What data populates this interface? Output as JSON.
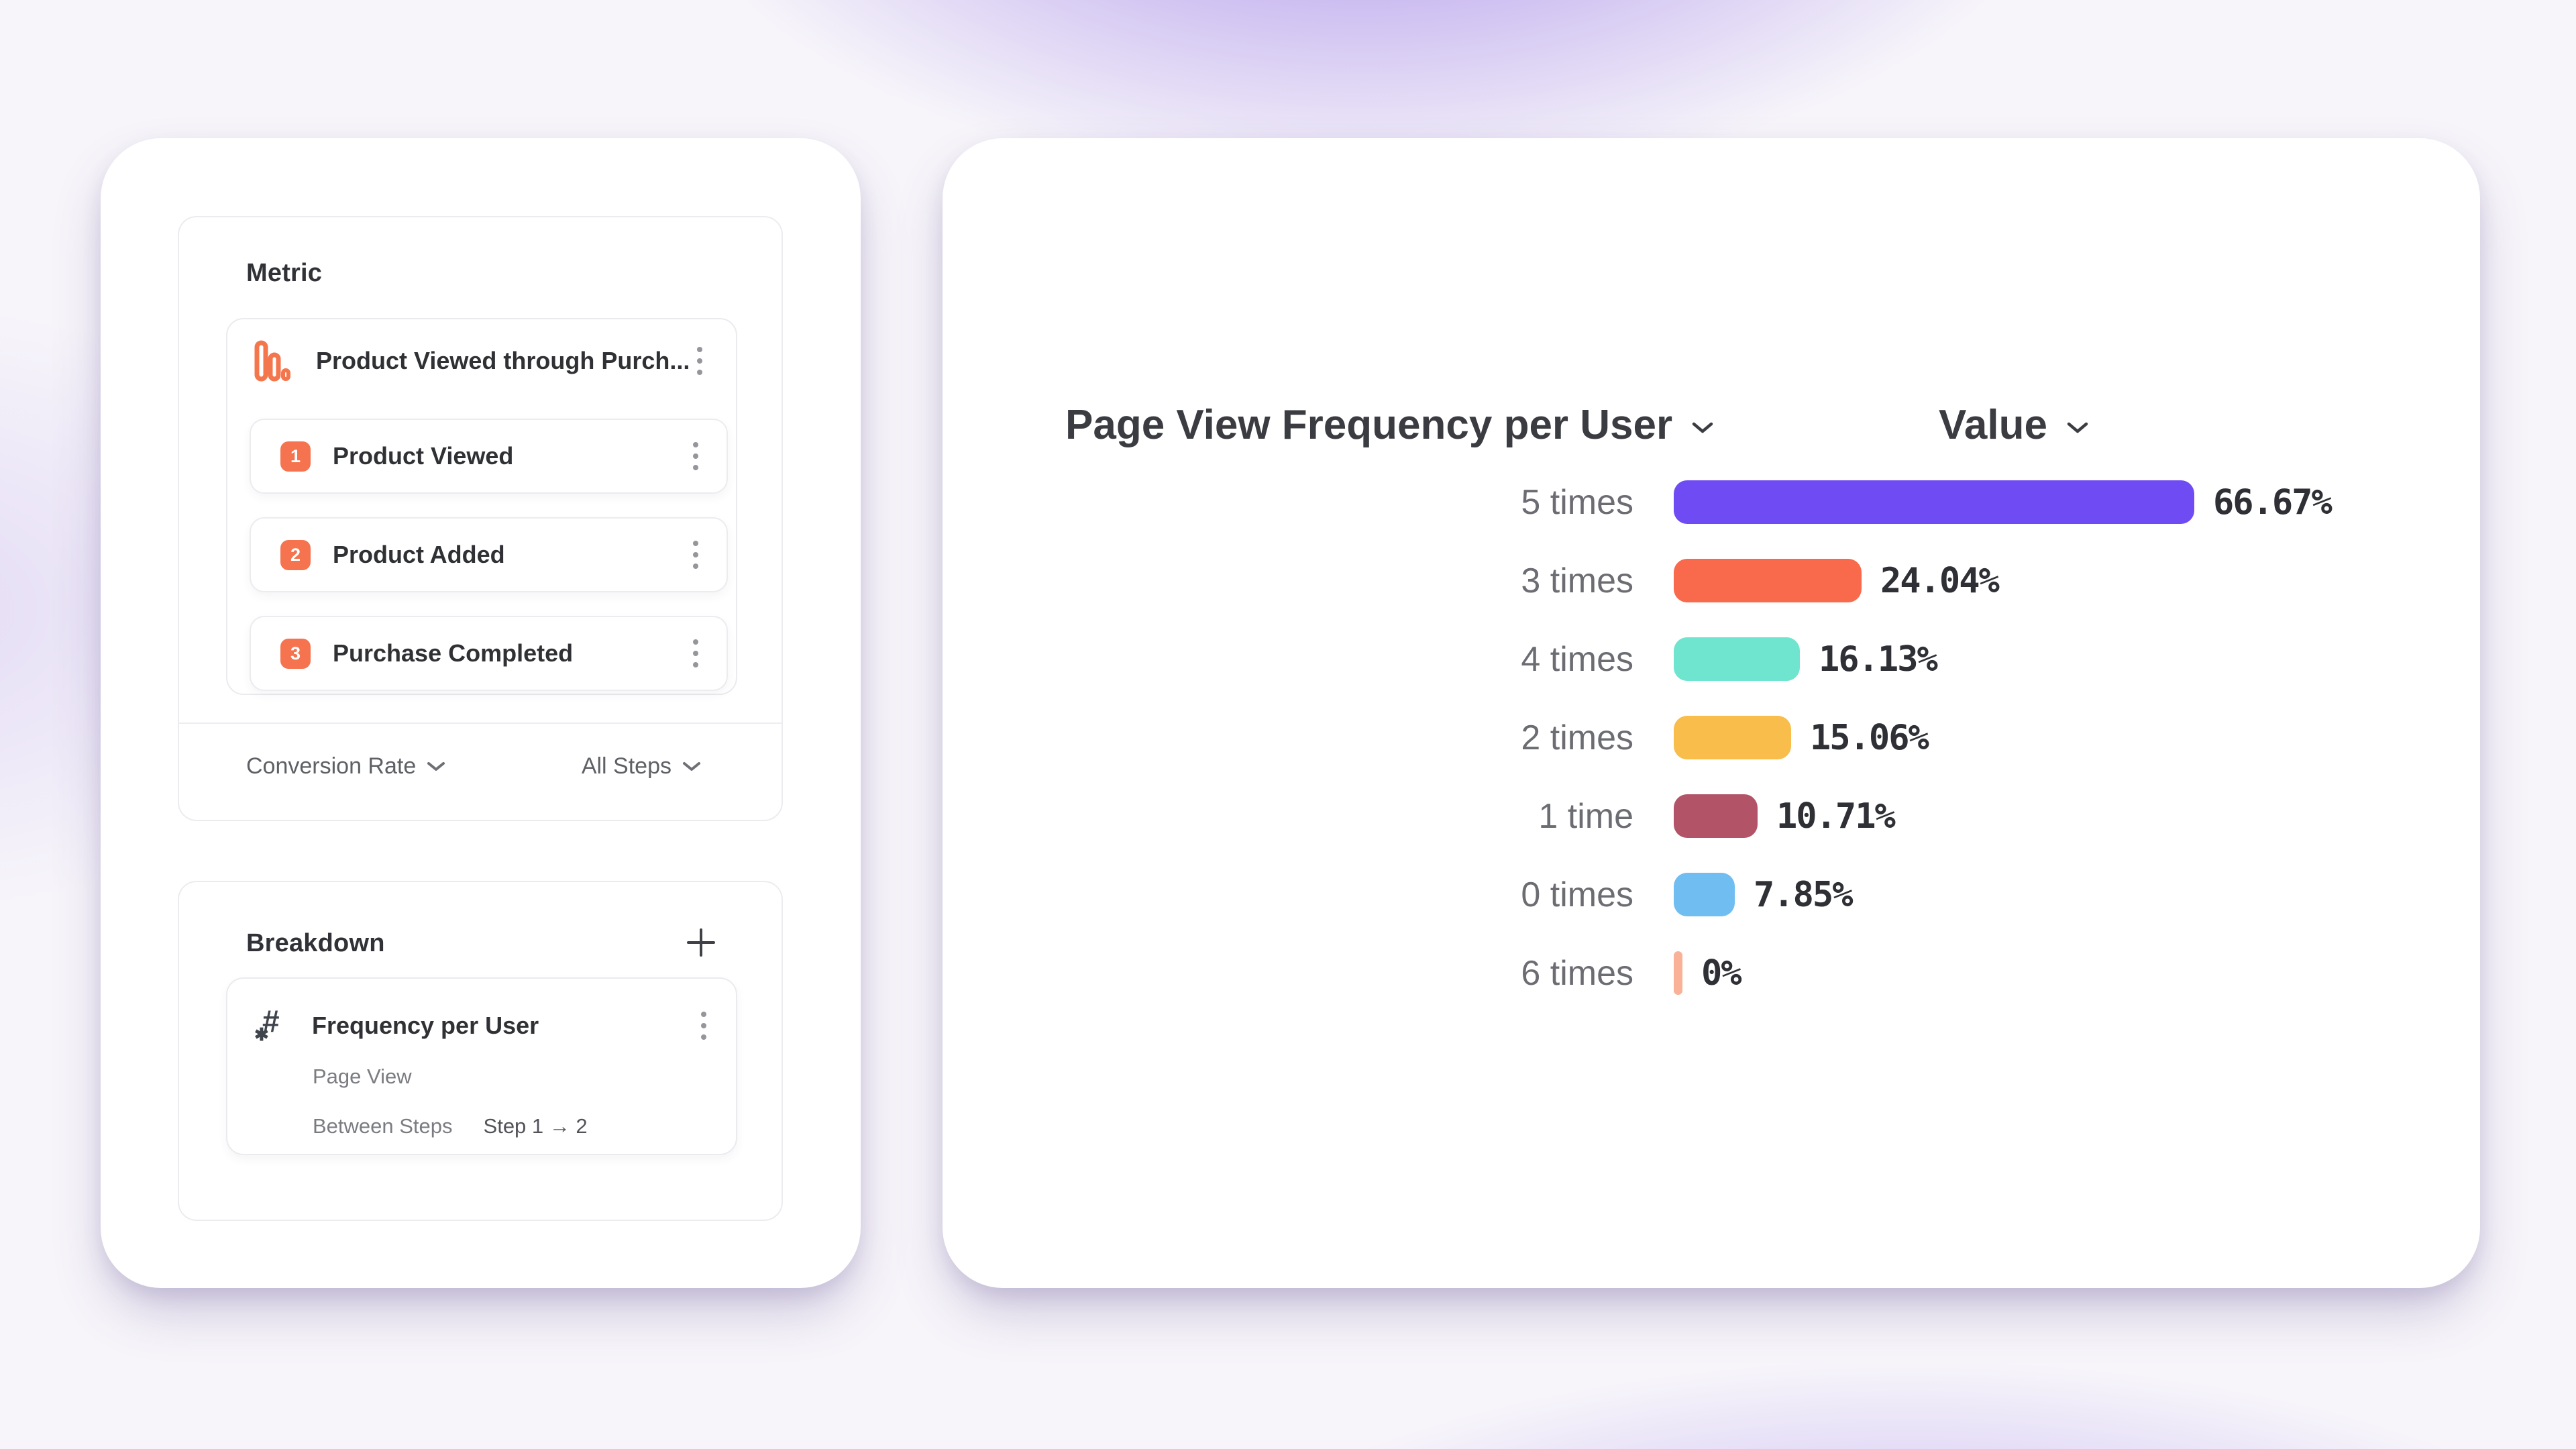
{
  "left_card": {
    "metric_panel": {
      "title": "Metric",
      "funnel": {
        "icon": "funnel-bars-icon",
        "title": "Product Viewed through Purch...",
        "steps": [
          {
            "num": "1",
            "label": "Product Viewed"
          },
          {
            "num": "2",
            "label": "Product Added"
          },
          {
            "num": "3",
            "label": "Purchase Completed"
          }
        ]
      },
      "footer": {
        "left_dropdown": "Conversion Rate",
        "right_dropdown": "All Steps"
      }
    },
    "breakdown_panel": {
      "title": "Breakdown",
      "item": {
        "icon": "number-property-icon",
        "hash_glyph": "#",
        "star_glyph": "✱",
        "title": "Frequency per User",
        "event": "Page View",
        "scope_label": "Between Steps",
        "scope_value": "Step 1 → 2"
      }
    }
  },
  "chart": {
    "title": "Page View Frequency per User",
    "value_header": "Value"
  },
  "chart_data": {
    "type": "bar",
    "orientation": "horizontal",
    "title": "Page View Frequency per User",
    "value_axis_label": "Value",
    "categories": [
      "5 times",
      "3 times",
      "4 times",
      "2 times",
      "1 time",
      "0 times",
      "6 times"
    ],
    "values": [
      66.67,
      24.04,
      16.13,
      15.06,
      10.71,
      7.85,
      0
    ],
    "value_labels": [
      "66.67%",
      "24.04%",
      "16.13%",
      "15.06%",
      "10.71%",
      "7.85%",
      "0%"
    ],
    "bar_colors": [
      "#6E4BF2",
      "#F9694C",
      "#6FE4CE",
      "#F8BD4A",
      "#B25368",
      "#70BDF2",
      "#F9B197"
    ],
    "xlim": [
      0,
      100
    ],
    "grid": false,
    "legend": "none"
  },
  "colors": {
    "accent_coral": "#F5734E",
    "panel_border": "#ECEBEF",
    "text_dark": "#2F3134",
    "text_gray": "#6B6D72"
  }
}
